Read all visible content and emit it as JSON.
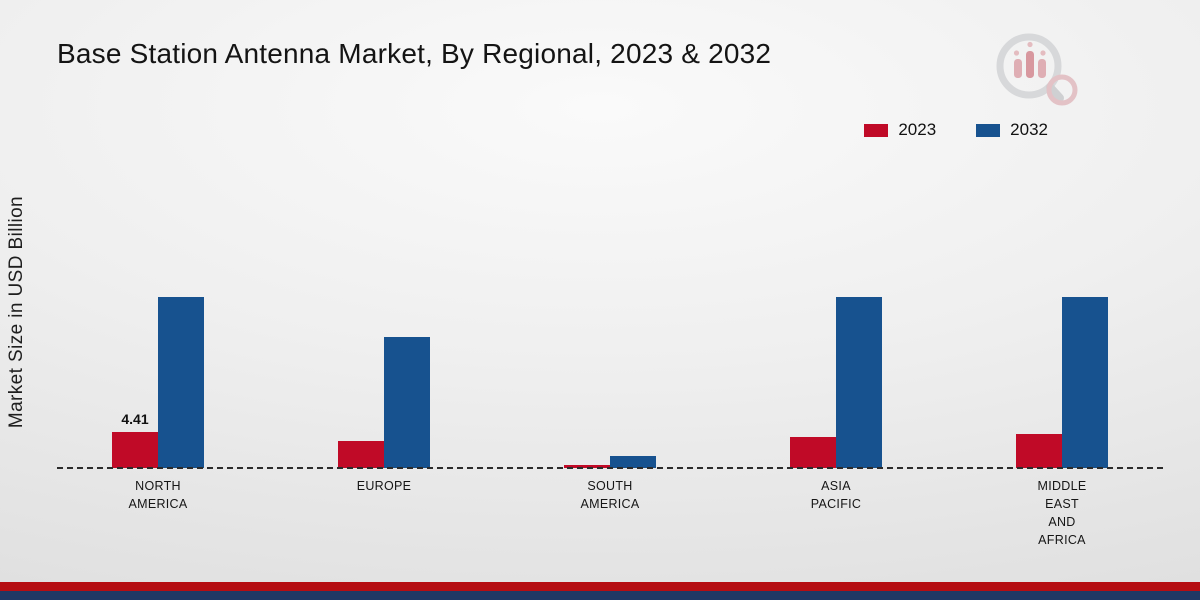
{
  "title": "Base Station Antenna Market, By Regional, 2023 & 2032",
  "ylabel": "Market Size in USD Billion",
  "legend": [
    {
      "label": "2023",
      "color": "#c00a27"
    },
    {
      "label": "2032",
      "color": "#17528f"
    }
  ],
  "chart_data": {
    "type": "bar",
    "title": "Base Station Antenna Market, By Regional, 2023 & 2032",
    "ylabel": "Market Size in USD Billion",
    "xlabel": "",
    "categories": [
      "NORTH\nAMERICA",
      "EUROPE",
      "SOUTH\nAMERICA",
      "ASIA\nPACIFIC",
      "MIDDLE\nEAST\nAND\nAFRICA"
    ],
    "series": [
      {
        "name": "2023",
        "color": "#c00a27",
        "values": [
          4.41,
          3.3,
          0.4,
          3.8,
          4.2
        ]
      },
      {
        "name": "2032",
        "color": "#17528f",
        "values": [
          21.0,
          16.0,
          1.5,
          21.0,
          21.0
        ]
      }
    ],
    "annotations": [
      {
        "series": "2023",
        "category_index": 0,
        "text": "4.41"
      }
    ],
    "ylim": [
      0,
      22
    ],
    "grid": false,
    "baseline_style": "dashed",
    "legend_position": "top-right"
  },
  "footer": {
    "red_strip_color": "#b50d12",
    "blue_strip_color": "#1f3864"
  }
}
